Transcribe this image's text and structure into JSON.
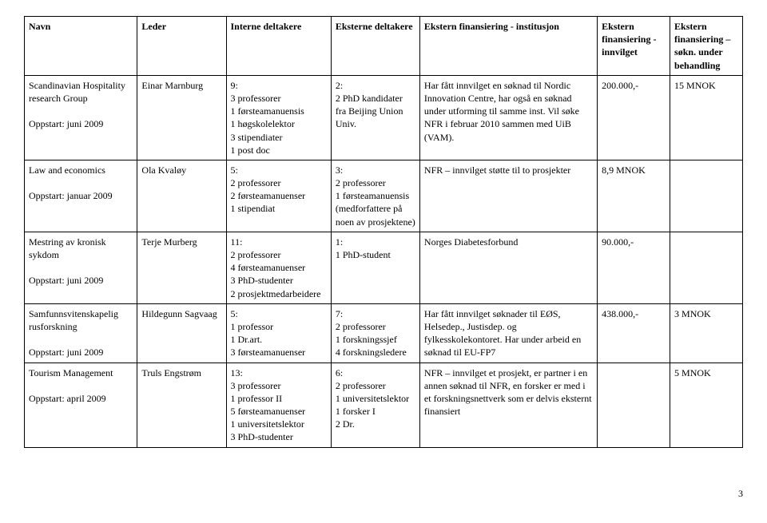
{
  "headers": {
    "navn": "Navn",
    "leder": "Leder",
    "interne": "Interne deltakere",
    "eksterne": "Eksterne deltakere",
    "inst": "Ekstern finansiering - institusjon",
    "innvilget": "Ekstern finansiering - innvilget",
    "under": "Ekstern finansiering – søkn. under behandling"
  },
  "rows": [
    {
      "navn": "Scandinavian Hospitality research Group\n\nOppstart: juni 2009",
      "leder": "Einar Marnburg",
      "interne": "9:\n3 professorer\n1 førsteamanuensis\n1 høgskolelektor\n3 stipendiater\n1 post doc",
      "eksterne": "2:\n2 PhD kandidater fra Beijing Union Univ.",
      "inst": "Har fått innvilget en søknad til Nordic Innovation Centre, har også en søknad under utforming til samme inst. Vil søke NFR i februar 2010 sammen med UiB (VAM).",
      "innvilget": "200.000,-",
      "under": "15 MNOK"
    },
    {
      "navn": "Law and economics\n\nOppstart: januar 2009",
      "leder": "Ola Kvaløy",
      "interne": "5:\n2 professorer\n2 førsteamanuenser\n1 stipendiat",
      "eksterne": "3:\n2 professorer\n1 førsteamanuensis (medforfattere på noen av prosjektene)",
      "inst": "NFR – innvilget støtte til to prosjekter",
      "innvilget": "8,9 MNOK",
      "under": ""
    },
    {
      "navn": "Mestring av kronisk sykdom\n\nOppstart: juni 2009",
      "leder": "Terje Murberg",
      "interne": "11:\n2 professorer\n4 førsteamanuenser\n3 PhD-studenter\n2 prosjektmedarbeidere",
      "eksterne": "1:\n1 PhD-student",
      "inst": "Norges Diabetesforbund",
      "innvilget": "90.000,-",
      "under": ""
    },
    {
      "navn": "Samfunnsvitenskapelig rusforskning\n\nOppstart: juni 2009",
      "leder": "Hildegunn Sagvaag",
      "interne": "5:\n1 professor\n1 Dr.art.\n3 førsteamanuenser",
      "eksterne": "7:\n2 professorer\n1 forskningssjef\n4 forskningsledere",
      "inst": "Har fått innvilget søknader til EØS, Helsedep., Justisdep. og fylkesskolekontoret. Har under arbeid en søknad til EU-FP7",
      "innvilget": "438.000,-",
      "under": "3 MNOK"
    },
    {
      "navn": "Tourism Management\n\nOppstart: april 2009",
      "leder": "Truls Engstrøm",
      "interne": "13:\n3 professorer\n1 professor II\n5 førsteamanuenser\n1 universitetslektor\n3 PhD-studenter",
      "eksterne": "6:\n2 professorer\n1 universitetslektor\n1 forsker I\n2 Dr.",
      "inst": "NFR – innvilget et prosjekt, er partner i en annen søknad til NFR, en forsker er med i et forskningsnettverk som er delvis eksternt finansiert",
      "innvilget": "",
      "under": "5 MNOK"
    }
  ],
  "pageNumber": "3"
}
